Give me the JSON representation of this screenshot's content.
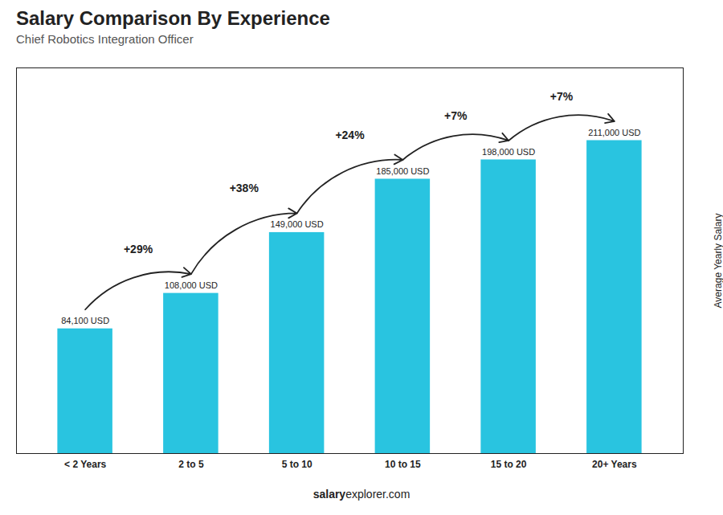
{
  "chart_data": {
    "type": "bar",
    "title": "Salary Comparison By Experience",
    "subtitle": "Chief Robotics Integration Officer",
    "ylabel": "Average Yearly Salary",
    "categories": [
      "< 2 Years",
      "2 to 5",
      "5 to 10",
      "10 to 15",
      "15 to 20",
      "20+ Years"
    ],
    "values": [
      84100,
      108000,
      149000,
      185000,
      198000,
      211000
    ],
    "value_labels": [
      "84,100 USD",
      "108,000 USD",
      "149,000 USD",
      "185,000 USD",
      "198,000 USD",
      "211,000 USD"
    ],
    "data_labels": true,
    "color": "#29C4E0",
    "ylim": [
      0,
      260000
    ],
    "tick_labels": "x",
    "annotations": [
      "+29%",
      "+38%",
      "+24%",
      "+7%",
      "+7%"
    ],
    "caption": [
      "salary",
      "explorer.com"
    ]
  }
}
